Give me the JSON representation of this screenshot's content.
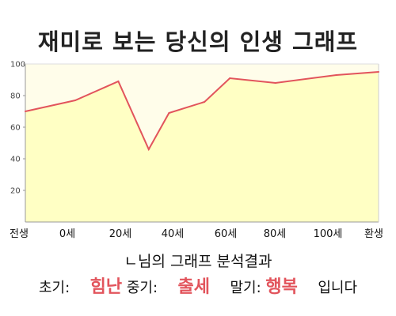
{
  "title": "재미로 보는 당신의 인생 그래프",
  "chart_data": {
    "type": "area",
    "title": "재미로 보는 당신의 인생 그래프",
    "x_tick_labels": [
      "전생",
      "0세",
      "20세",
      "40세",
      "60세",
      "80세",
      "100세",
      "환생"
    ],
    "y_ticks": [
      20,
      40,
      60,
      80,
      100
    ],
    "ylim": [
      0,
      100
    ],
    "grid": false,
    "series": [
      {
        "points": [
          {
            "x": "전생",
            "y": 70
          },
          {
            "x": "0세",
            "y": 77
          },
          {
            "x": "17세",
            "y": 89
          },
          {
            "x": "29세",
            "y": 46
          },
          {
            "x": "37세",
            "y": 69
          },
          {
            "x": "51세",
            "y": 76
          },
          {
            "x": "61세",
            "y": 91
          },
          {
            "x": "79세",
            "y": 88
          },
          {
            "x": "103세",
            "y": 93
          },
          {
            "x": "환생",
            "y": 95
          }
        ]
      }
    ],
    "colors": {
      "fill": "#ffffc4",
      "line": "#e2545c",
      "plot_bg": "#fffdea",
      "axis": "#999999"
    }
  },
  "result_line": "ㄴ님의 그래프 분석결과",
  "summary": {
    "early_label": "초기:",
    "early_value": "힘난",
    "mid_label": "중기:",
    "mid_value": "출세",
    "late_label": "말기:",
    "late_value": "행복",
    "suffix": "입니다"
  }
}
